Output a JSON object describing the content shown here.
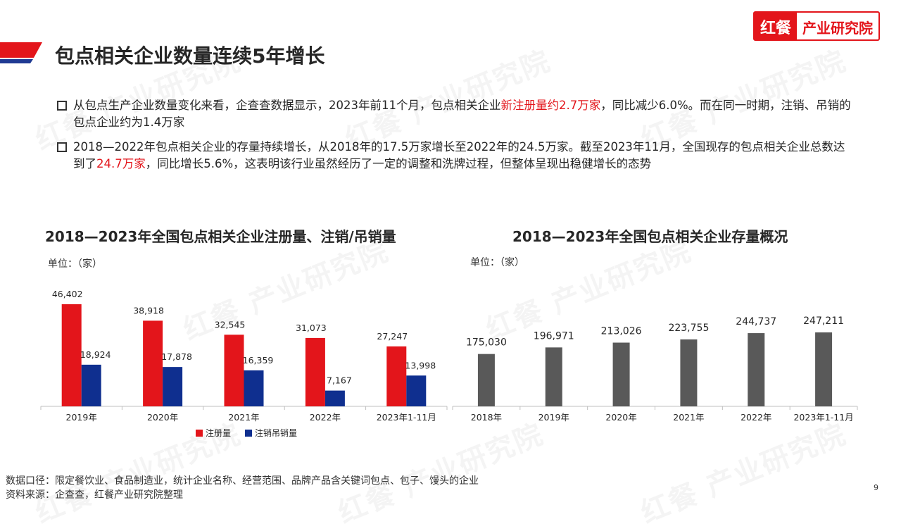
{
  "header": {
    "title": "包点相关企业数量连续5年增长",
    "logo_left": "红餐",
    "logo_right": "产业研究院"
  },
  "bullets": [
    {
      "before": "从包点生产企业数量变化来看，企查查数据显示，2023年前11个月，包点相关企业",
      "highlight": "新注册量约2.7万家",
      "after": "，同比减少6.0%。而在同一时期，注销、吊销的包点企业约为1.4万家"
    },
    {
      "before": "2018—2022年包点相关企业的存量持续增长，从2018年的17.5万家增长至2022年的24.5万家。截至2023年11月，全国现存的包点相关企业总数达到了",
      "highlight": "24.7万家",
      "after": "，同比增长5.6%，这表明该行业虽然经历了一定的调整和洗牌过程，但整体呈现出稳健增长的态势"
    }
  ],
  "chart_data": [
    {
      "type": "bar",
      "title": "2018—2023年全国包点相关企业注册量、注销/吊销量",
      "unit": "单位：（家）",
      "categories": [
        "2019年",
        "2020年",
        "2021年",
        "2022年",
        "2023年1-11月"
      ],
      "series": [
        {
          "name": "注册量",
          "values": [
            46402,
            38918,
            32545,
            31073,
            27247
          ],
          "color": "#e3151b"
        },
        {
          "name": "注销吊销量",
          "values": [
            18924,
            17878,
            16359,
            7167,
            13998
          ],
          "color": "#0f2f8f"
        }
      ],
      "value_labels": {
        "注册量": [
          "46,402",
          "38,918",
          "32,545",
          "31,073",
          "27,247"
        ],
        "注销吊销量": [
          "18,924",
          "17,878",
          "16,359",
          "7,167",
          "13,998"
        ]
      },
      "legend": "bottom"
    },
    {
      "type": "bar",
      "title": "2018—2023年全国包点相关企业存量概况",
      "unit": "单位：（家）",
      "categories": [
        "2018年",
        "2019年",
        "2020年",
        "2021年",
        "2022年",
        "2023年1-11月"
      ],
      "series": [
        {
          "values": [
            175030,
            196971,
            213026,
            223755,
            244737,
            247211
          ],
          "color": "#595959"
        }
      ],
      "value_labels": [
        "175,030",
        "196,971",
        "213,026",
        "223,755",
        "244,737",
        "247,211"
      ]
    }
  ],
  "footer": {
    "note": "数据口径：限定餐饮业、食品制造业，统计企业名称、经营范围、品牌产品含关键词包点、包子、馒头的企业",
    "source": "资料来源：企查查，红餐产业研究院整理"
  },
  "page_number": "9",
  "watermark": {
    "logo": "红餐",
    "text": "产业研究院"
  }
}
